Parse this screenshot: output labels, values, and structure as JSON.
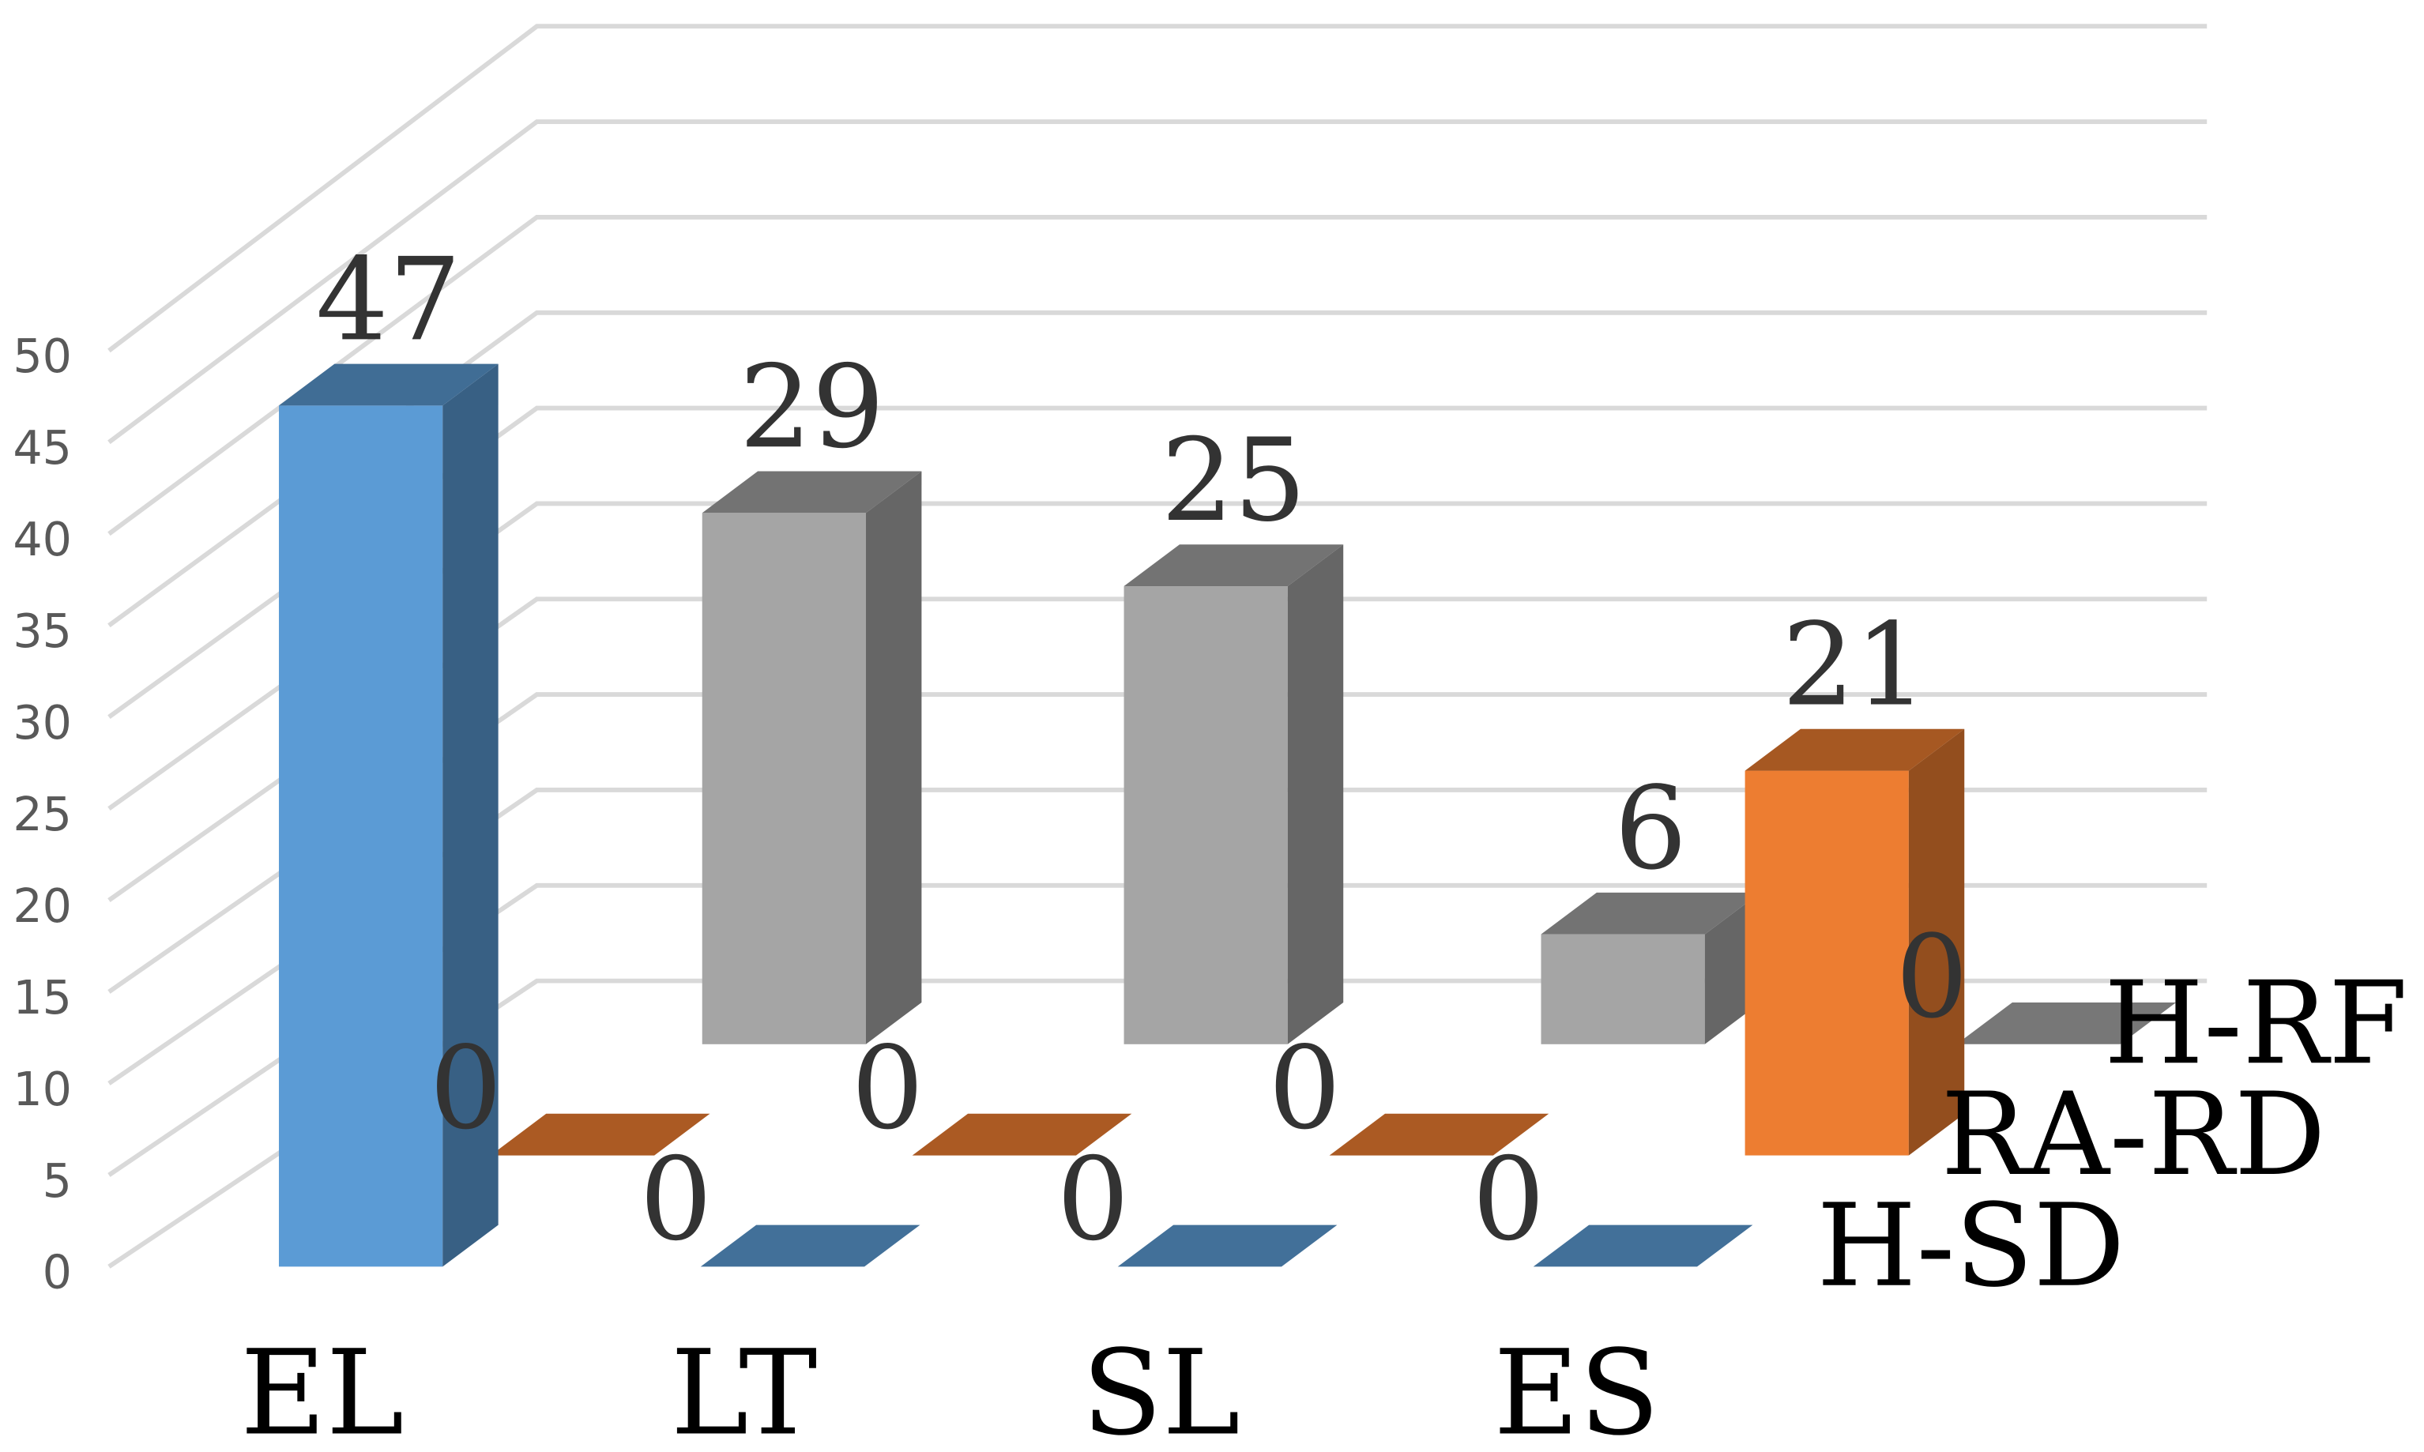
{
  "chart_data": {
    "type": "bar",
    "subtype": "3d-column",
    "title": "",
    "xlabel": "",
    "ylabel": "",
    "ylim": [
      0,
      50
    ],
    "yticks": [
      "0",
      "5",
      "10",
      "15",
      "20",
      "25",
      "30",
      "35",
      "40",
      "45",
      "50"
    ],
    "grid": true,
    "categories": [
      "EL",
      "LT",
      "SL",
      "ES"
    ],
    "series": [
      {
        "name": "H-RF",
        "values": [
          29,
          25,
          6,
          0
        ],
        "color": "#a5a5a5"
      },
      {
        "name": "RA-RD",
        "values": [
          0,
          0,
          0,
          21
        ],
        "color": "#ed7d31"
      },
      {
        "name": "H-SD",
        "values": [
          47,
          0,
          0,
          0
        ],
        "color": "#5b9bd5"
      }
    ],
    "data_labels": [
      {
        "series": "H-SD",
        "category": "EL",
        "text": "47"
      },
      {
        "series": "H-RF",
        "category": "EL",
        "text": "29"
      },
      {
        "series": "RA-RD",
        "category": "EL",
        "text": "0"
      },
      {
        "series": "H-RF",
        "category": "LT",
        "text": "25"
      },
      {
        "series": "RA-RD",
        "category": "LT",
        "text": "0"
      },
      {
        "series": "H-SD",
        "category": "LT",
        "text": "0"
      },
      {
        "series": "H-RF",
        "category": "SL",
        "text": "6"
      },
      {
        "series": "RA-RD",
        "category": "SL",
        "text": "0"
      },
      {
        "series": "H-SD",
        "category": "SL",
        "text": "0"
      },
      {
        "series": "RA-RD",
        "category": "ES",
        "text": "21"
      },
      {
        "series": "H-RF",
        "category": "ES",
        "text": "0"
      },
      {
        "series": "H-SD",
        "category": "ES",
        "text": "0"
      }
    ]
  }
}
